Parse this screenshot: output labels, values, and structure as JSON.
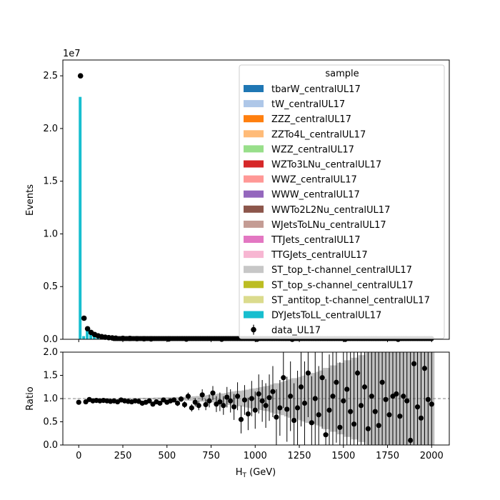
{
  "chart_data": [
    {
      "type": "bar",
      "role": "main",
      "ylabel": "Events",
      "yscale_label": "1e7",
      "xlim": [
        -90,
        2100
      ],
      "ylim": [
        0,
        26500000
      ],
      "yticks": [
        {
          "v": 0,
          "label": "0.0"
        },
        {
          "v": 5000000,
          "label": "0.5"
        },
        {
          "v": 10000000,
          "label": "1.0"
        },
        {
          "v": 15000000,
          "label": "1.5"
        },
        {
          "v": 20000000,
          "label": "2.0"
        },
        {
          "v": 25000000,
          "label": "2.5"
        }
      ],
      "xticks": [
        0,
        250,
        500,
        750,
        1000,
        1250,
        1500,
        1750,
        2000
      ],
      "bin_width": 20,
      "stack": {
        "x": [
          0,
          20,
          40,
          60,
          80,
          100,
          120,
          140,
          160,
          180,
          200,
          240,
          280,
          320,
          360,
          400,
          500,
          600,
          800,
          1000,
          1200,
          1500,
          1800
        ],
        "values": [
          23000000,
          300000,
          1000000,
          650000,
          450000,
          330000,
          250000,
          200000,
          160000,
          130000,
          110000,
          90000,
          80000,
          60000,
          50000,
          40000,
          30000,
          20000,
          12000,
          8000,
          5000,
          3000,
          2000
        ]
      },
      "data_points": {
        "x": [
          0,
          20,
          40,
          60,
          80,
          100,
          120,
          140,
          160,
          180,
          200,
          240,
          280,
          320,
          360,
          400,
          500,
          600,
          800,
          1000,
          1200,
          1500,
          1800
        ],
        "values": [
          25000000,
          2000000,
          1000000,
          650000,
          450000,
          330000,
          250000,
          200000,
          160000,
          130000,
          110000,
          90000,
          80000,
          60000,
          50000,
          40000,
          30000,
          20000,
          12000,
          8000,
          5000,
          3000,
          2000
        ]
      },
      "legend": {
        "title": "sample",
        "position": "upper-right",
        "entries": [
          {
            "name": "tbarW_centralUL17",
            "color": "#1f77b4"
          },
          {
            "name": "tW_centralUL17",
            "color": "#aec7e8"
          },
          {
            "name": "ZZZ_centralUL17",
            "color": "#ff7f0e"
          },
          {
            "name": "ZZTo4L_centralUL17",
            "color": "#ffbb78"
          },
          {
            "name": "WZZ_centralUL17",
            "color": "#98df8a"
          },
          {
            "name": "WZTo3LNu_centralUL17",
            "color": "#d62728"
          },
          {
            "name": "WWZ_centralUL17",
            "color": "#ff9896"
          },
          {
            "name": "WWW_centralUL17",
            "color": "#9467bd"
          },
          {
            "name": "WWTo2L2Nu_centralUL17",
            "color": "#8c564b"
          },
          {
            "name": "WJetsToLNu_centralUL17",
            "color": "#c49c94"
          },
          {
            "name": "TTJets_centralUL17",
            "color": "#e377c2"
          },
          {
            "name": "TTGJets_centralUL17",
            "color": "#f7b6d2"
          },
          {
            "name": "ST_top_t-channel_centralUL17",
            "color": "#c7c7c7"
          },
          {
            "name": "ST_top_s-channel_centralUL17",
            "color": "#bcbd22"
          },
          {
            "name": "ST_antitop_t-channel_centralUL17",
            "color": "#dbdb8d"
          },
          {
            "name": "DYJetsToLL_centralUL17",
            "color": "#17becf"
          }
        ],
        "data_entry": "data_UL17"
      }
    },
    {
      "type": "scatter",
      "role": "ratio",
      "xlabel": "H",
      "xlabel_sub": "T",
      "xlabel_unit": " (GeV)",
      "ylabel": "Ratio",
      "xlim": [
        -90,
        2100
      ],
      "ylim": [
        0,
        2
      ],
      "yticks": [
        "0.0",
        "0.5",
        "1.0",
        "1.5",
        "2.0"
      ],
      "xticks": [
        "0",
        "250",
        "500",
        "750",
        "1000",
        "1250",
        "1500",
        "1750",
        "2000"
      ],
      "reference_line": 1.0,
      "x": [
        0,
        40,
        60,
        80,
        100,
        120,
        140,
        160,
        180,
        200,
        220,
        240,
        260,
        280,
        300,
        320,
        340,
        360,
        380,
        400,
        420,
        440,
        460,
        480,
        500,
        520,
        540,
        560,
        580,
        600,
        620,
        640,
        660,
        680,
        700,
        720,
        740,
        760,
        780,
        800,
        820,
        840,
        860,
        880,
        900,
        920,
        940,
        960,
        980,
        1000,
        1020,
        1040,
        1060,
        1080,
        1100,
        1120,
        1140,
        1160,
        1180,
        1200,
        1220,
        1240,
        1260,
        1280,
        1300,
        1320,
        1340,
        1360,
        1380,
        1400,
        1420,
        1440,
        1460,
        1480,
        1500,
        1520,
        1540,
        1560,
        1580,
        1600,
        1620,
        1640,
        1660,
        1680,
        1700,
        1720,
        1740,
        1760,
        1780,
        1800,
        1820,
        1840,
        1860,
        1880,
        1900,
        1920,
        1940,
        1960,
        1980,
        2000
      ],
      "values": [
        0.92,
        0.93,
        0.98,
        0.95,
        0.96,
        0.95,
        0.96,
        0.95,
        0.94,
        0.95,
        0.93,
        0.97,
        0.95,
        0.94,
        0.93,
        0.95,
        0.94,
        0.9,
        0.92,
        0.95,
        0.88,
        0.93,
        0.9,
        0.97,
        0.92,
        0.95,
        0.97,
        0.9,
        0.99,
        0.87,
        1.05,
        0.8,
        0.92,
        0.85,
        1.08,
        0.87,
        0.95,
        1.12,
        0.88,
        0.93,
        0.85,
        1.03,
        0.95,
        0.82,
        1.05,
        0.55,
        0.97,
        0.67,
        1.0,
        0.75,
        1.1,
        0.95,
        0.85,
        1.02,
        1.15,
        0.6,
        0.8,
        1.45,
        0.77,
        1.05,
        0.53,
        0.8,
        1.25,
        0.9,
        1.55,
        0.48,
        1.0,
        0.65,
        1.45,
        0.22,
        0.75,
        1.05,
        1.35,
        0.38,
        0.95,
        1.2,
        0.72,
        0.45,
        1.55,
        0.85,
        1.25,
        0.35,
        1.05,
        0.72,
        0.42,
        1.35,
        0.98,
        0.65,
        1.05,
        1.1,
        0.62,
        1.05,
        0.95,
        0.1,
        1.75,
        0.82,
        0.58,
        1.65,
        0.98,
        0.88
      ],
      "errors": [
        0.01,
        0.01,
        0.01,
        0.01,
        0.01,
        0.01,
        0.01,
        0.01,
        0.01,
        0.01,
        0.01,
        0.01,
        0.02,
        0.02,
        0.02,
        0.02,
        0.02,
        0.03,
        0.03,
        0.03,
        0.03,
        0.04,
        0.04,
        0.04,
        0.05,
        0.05,
        0.05,
        0.06,
        0.06,
        0.07,
        0.08,
        0.08,
        0.09,
        0.1,
        0.12,
        0.12,
        0.14,
        0.15,
        0.17,
        0.2,
        0.2,
        0.22,
        0.25,
        0.28,
        0.3,
        0.3,
        0.32,
        0.35,
        0.38,
        0.4,
        0.42,
        0.45,
        0.48,
        0.5,
        0.55,
        0.6,
        0.6,
        0.65,
        0.7,
        0.75,
        0.8,
        0.8,
        0.85,
        0.9,
        0.95,
        1.0,
        1.0,
        1.05,
        1.1,
        1.2,
        1.2,
        1.3,
        1.3,
        1.4,
        1.4,
        1.5,
        1.5,
        1.6,
        1.6,
        1.7,
        1.7,
        1.8,
        1.8,
        1.9,
        2.0,
        2.0,
        2.0,
        2.0,
        2.0,
        2.0,
        2.0,
        2.0,
        2.0,
        2.0,
        2.0,
        2.0,
        2.0,
        2.0,
        2.0,
        2.0
      ],
      "band_color": "#c0c0c0"
    }
  ]
}
